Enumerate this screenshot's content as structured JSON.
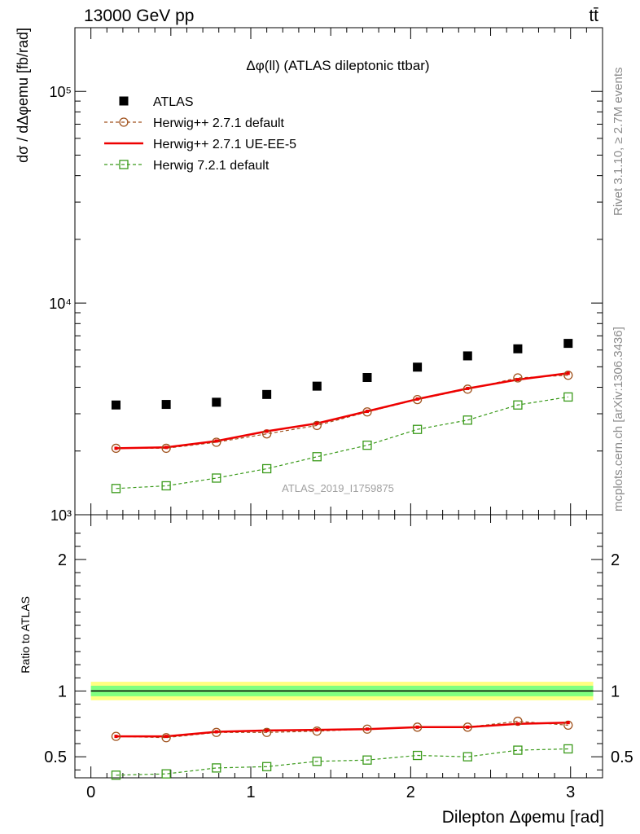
{
  "header": {
    "left": "13000 GeV pp",
    "right": "tt̄"
  },
  "side_labels": {
    "rivet": "Rivet 3.1.10, ≥ 2.7M events",
    "mcplots": "mcplots.cern.ch [arXiv:1306.3436]"
  },
  "colors": {
    "atlas": "#000000",
    "herwigpp_default": "#a0521d",
    "herwigpp_ueee5": "#ee0000",
    "herwig721": "#3a9a1a",
    "band_yellow": "#ffff80",
    "band_green": "#80ff80"
  },
  "chart_data": [
    {
      "type": "scatter",
      "panel": "main",
      "title": "Δφ(ll) (ATLAS dileptonic ttbar)",
      "watermark": "ATLAS_2019_I1759875",
      "ylabel": "dσ / dΔφemu [fb/rad]",
      "yscale": "log",
      "ylim": [
        1000,
        200000
      ],
      "xlim": [
        -0.1,
        3.2
      ],
      "y_ticklabels": [
        "10³",
        "10⁴",
        "10⁵"
      ],
      "legend_position": "top-left",
      "x": [
        0.157,
        0.471,
        0.785,
        1.1,
        1.414,
        1.728,
        2.042,
        2.356,
        2.67,
        2.985
      ],
      "series": [
        {
          "name": "ATLAS",
          "style": "markers",
          "marker": "filled-square",
          "values": [
            3300,
            3320,
            3400,
            3700,
            4050,
            4450,
            4980,
            5630,
            6080,
            6450
          ]
        },
        {
          "name": "Herwig++ 2.7.1 default",
          "style": "dashed",
          "marker": "open-circle",
          "values": [
            2060,
            2060,
            2200,
            2410,
            2640,
            3060,
            3500,
            3920,
            4430,
            4560
          ]
        },
        {
          "name": "Herwig++ 2.7.1 UE-EE-5",
          "style": "solid",
          "marker": "none",
          "values": [
            2060,
            2080,
            2230,
            2480,
            2700,
            3080,
            3520,
            3950,
            4350,
            4660
          ]
        },
        {
          "name": "Herwig 7.2.1 default",
          "style": "dashed",
          "marker": "open-square",
          "values": [
            1330,
            1370,
            1490,
            1650,
            1880,
            2130,
            2530,
            2800,
            3300,
            3600
          ]
        }
      ]
    },
    {
      "type": "line",
      "panel": "ratio",
      "ylabel": "Ratio to ATLAS",
      "xlabel": "Dilepton Δφemu [rad]",
      "ylim": [
        0.34,
        2.34
      ],
      "xlim": [
        -0.1,
        3.2
      ],
      "y_ticklabels": [
        "0.5",
        "1",
        "2"
      ],
      "x_ticklabels": [
        "0",
        "1",
        "2",
        "3"
      ],
      "x": [
        0.157,
        0.471,
        0.785,
        1.1,
        1.414,
        1.728,
        2.042,
        2.356,
        2.67,
        2.985
      ],
      "band": {
        "center": 1.0,
        "inner": [
          0.96,
          1.04
        ],
        "outer": [
          0.93,
          1.07
        ]
      },
      "series": [
        {
          "name": "Herwig++ 2.7.1 default",
          "values": [
            0.655,
            0.645,
            0.685,
            0.685,
            0.695,
            0.71,
            0.725,
            0.725,
            0.77,
            0.74
          ]
        },
        {
          "name": "Herwig++ 2.7.1 UE-EE-5",
          "values": [
            0.655,
            0.655,
            0.69,
            0.7,
            0.705,
            0.71,
            0.725,
            0.725,
            0.75,
            0.76
          ]
        },
        {
          "name": "Herwig 7.2.1 default",
          "values": [
            0.36,
            0.37,
            0.415,
            0.425,
            0.465,
            0.475,
            0.51,
            0.5,
            0.55,
            0.56
          ]
        }
      ]
    }
  ]
}
